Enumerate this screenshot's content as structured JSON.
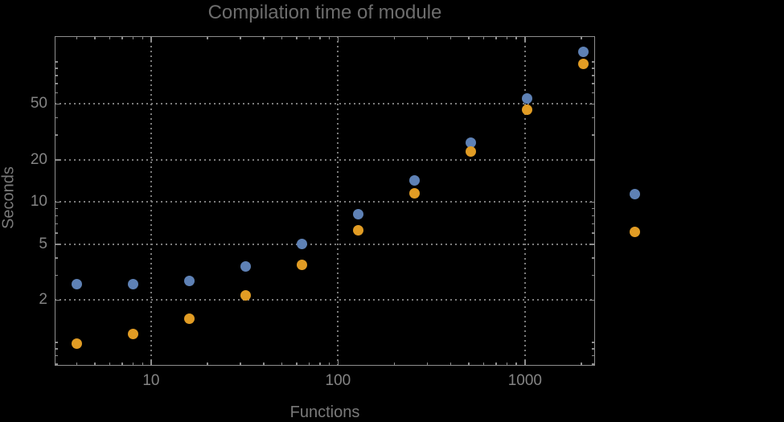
{
  "colors": {
    "background": "#000000",
    "frame": "#8e8e8e",
    "grid": "#7b7b7b",
    "title_text": "#6d6d6d",
    "label_text": "#7a7a7a",
    "tick_text": "#848484",
    "series1": "#5E81B5",
    "series2": "#E19C24"
  },
  "chart_data": {
    "type": "scatter",
    "title": "Compilation time of module",
    "xlabel": "Functions",
    "ylabel": "Seconds",
    "xscale": "log",
    "yscale": "log",
    "xlim": [
      3.05,
      2370
    ],
    "ylim": [
      0.68,
      152.5
    ],
    "grid": true,
    "x": [
      4,
      8,
      16,
      32,
      64,
      128,
      256,
      512,
      1024,
      2048
    ],
    "series": [
      {
        "name": "series-1-blue",
        "color": "#5E81B5",
        "values": [
          2.6,
          2.6,
          2.75,
          3.45,
          5.05,
          8.2,
          14.3,
          26.6,
          55,
          118
        ]
      },
      {
        "name": "series-2-orange",
        "color": "#E19C24",
        "values": [
          0.98,
          1.15,
          1.48,
          2.15,
          3.55,
          6.3,
          11.6,
          22.8,
          45.8,
          97
        ]
      }
    ],
    "x_ticks": {
      "major": [
        10,
        100,
        1000
      ],
      "major_labels": [
        "10",
        "100",
        "1000"
      ],
      "minor": [
        4,
        5,
        6,
        7,
        8,
        9,
        20,
        30,
        40,
        50,
        60,
        70,
        80,
        90,
        200,
        300,
        400,
        500,
        600,
        700,
        800,
        900,
        2000
      ]
    },
    "y_ticks": {
      "major": [
        2,
        5,
        10,
        20,
        50
      ],
      "major_labels": [
        "2",
        "5",
        "10",
        "20",
        "50"
      ],
      "minor": [
        0.7,
        0.8,
        0.9,
        1,
        3,
        4,
        6,
        7,
        8,
        9,
        30,
        40,
        60,
        70,
        80,
        90,
        100
      ]
    },
    "grid_x": [
      10,
      100,
      1000
    ],
    "grid_y": [
      2,
      5,
      10,
      20,
      50
    ],
    "legend": {
      "position": "outside-right",
      "entries": [
        {
          "label": "",
          "color": "#5E81B5"
        },
        {
          "label": "",
          "color": "#E19C24"
        }
      ]
    }
  }
}
